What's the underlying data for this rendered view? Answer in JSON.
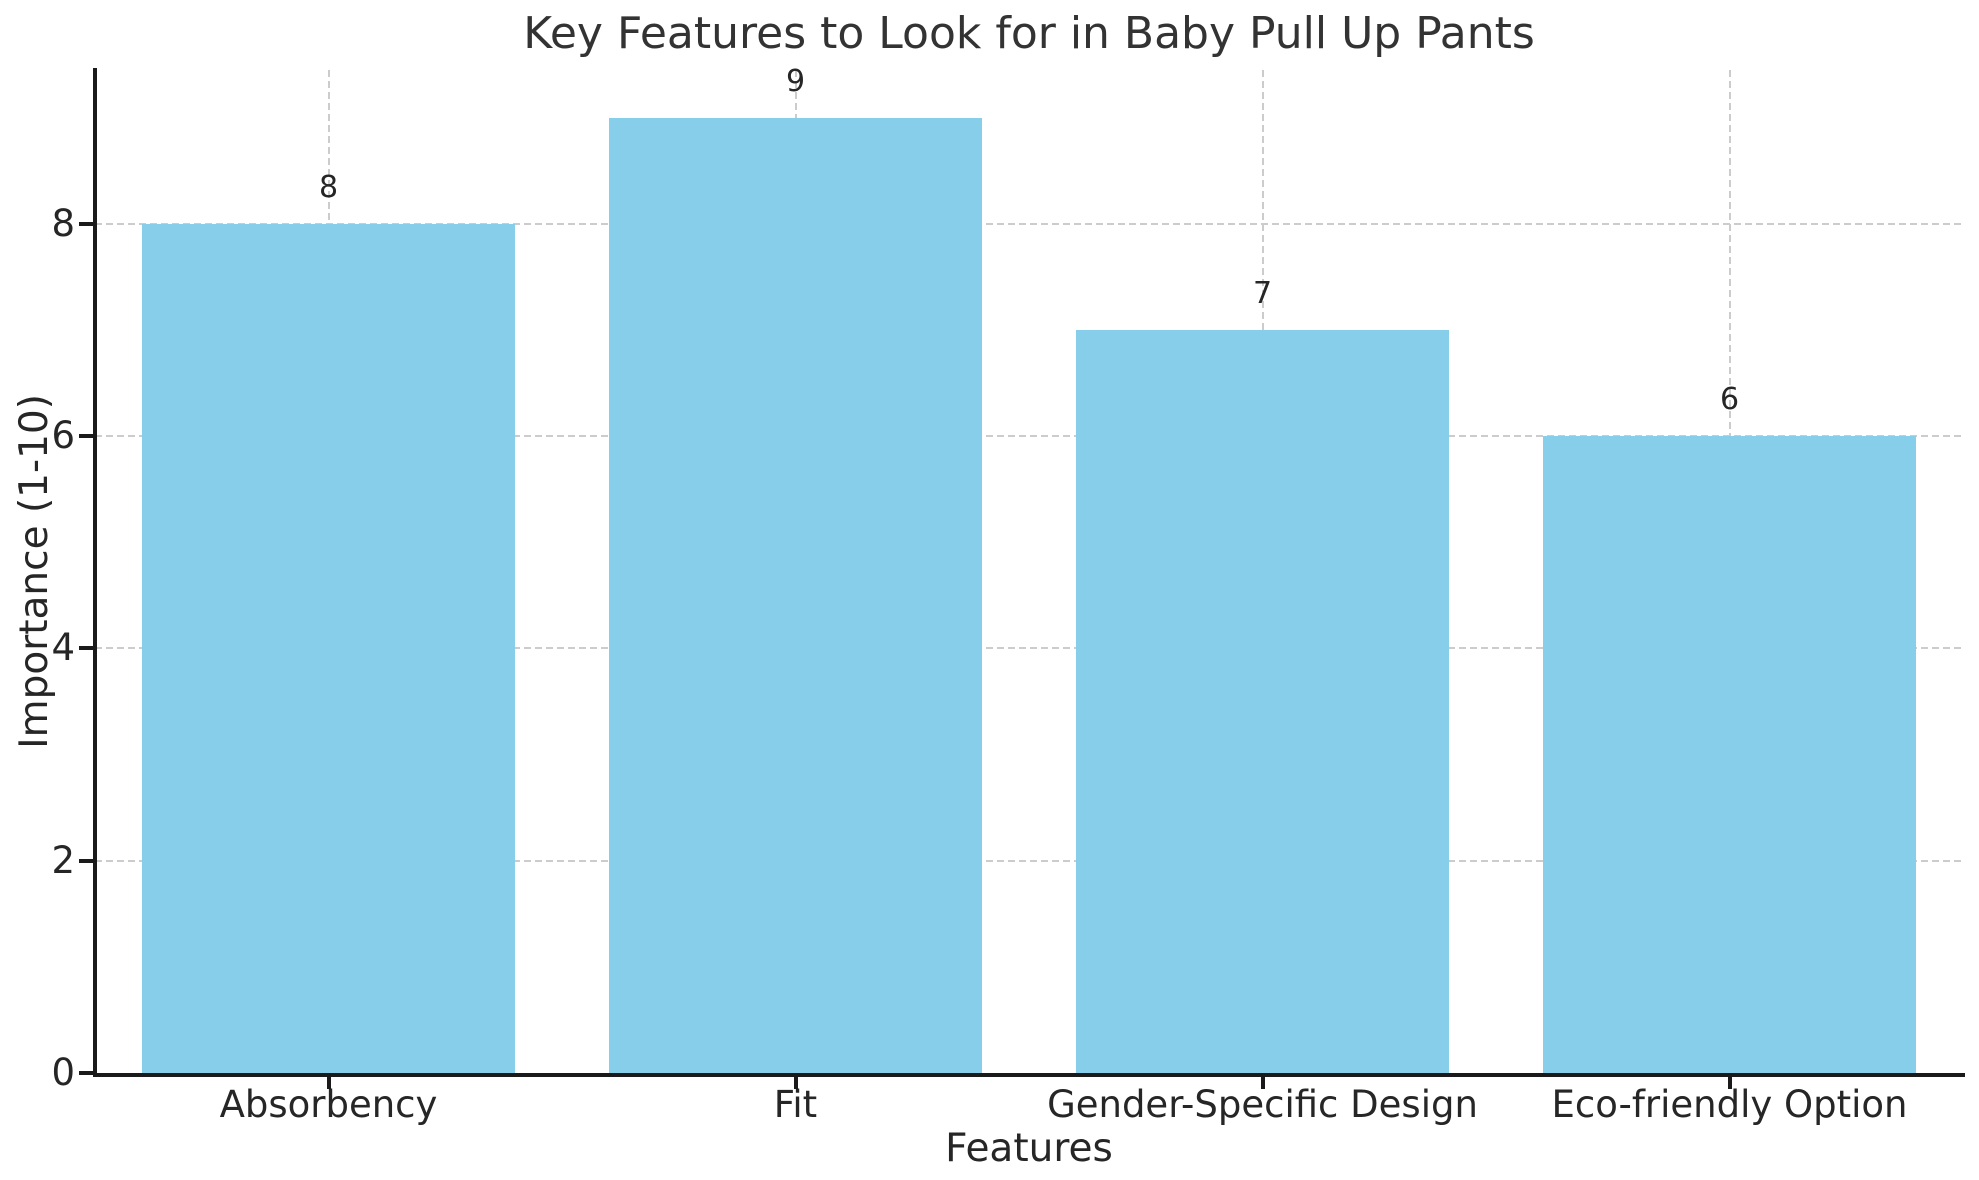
{
  "chart_data": {
    "type": "bar",
    "title": "Key Features to Look for in Baby Pull Up Pants",
    "xlabel": "Features",
    "ylabel": "Importance (1-10)",
    "categories": [
      "Absorbency",
      "Fit",
      "Gender-Specific Design",
      "Eco-friendly Option"
    ],
    "values": [
      8,
      9,
      7,
      6
    ],
    "bar_value_labels": [
      "8",
      "9",
      "7",
      "6"
    ],
    "yticks": [
      "0",
      "2",
      "4",
      "6",
      "8"
    ],
    "ytick_values": [
      0,
      2,
      4,
      6,
      8
    ],
    "ylim": [
      0,
      9.45
    ],
    "bar_width_fraction": 0.8,
    "grid": "dashed",
    "legend": "none",
    "colors": {
      "bar_fill": "#87CEEB",
      "grid_line": "#cccccc",
      "axis_spine": "#1a1a1a",
      "tick_text": "#262626",
      "title_text": "#333333"
    }
  }
}
